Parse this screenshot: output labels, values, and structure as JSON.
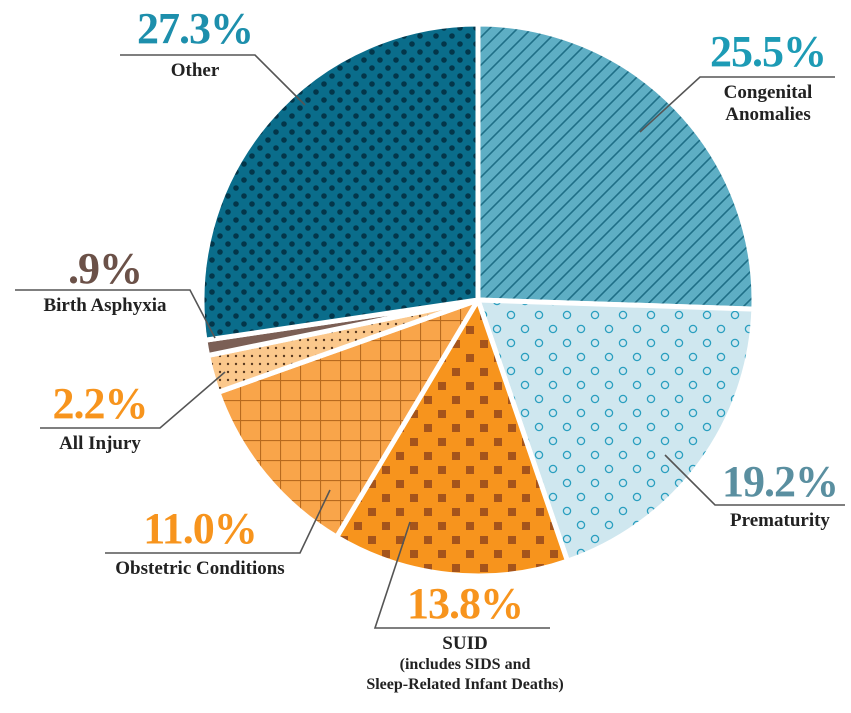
{
  "chart_data": {
    "type": "pie",
    "categories": [
      "Congenital Anomalies",
      "Prematurity",
      "SUID",
      "Obstetric Conditions",
      "All Injury",
      "Birth Asphyxia",
      "Other"
    ],
    "values": [
      25.5,
      19.2,
      13.8,
      11.0,
      2.2,
      0.9,
      27.3
    ],
    "value_labels": [
      "25.5%",
      "19.2%",
      "13.8%",
      "11.0%",
      "2.2%",
      ".9%",
      "27.3%"
    ],
    "colors": [
      "#5eaec4",
      "#cfe7ef",
      "#f7941d",
      "#f9a54a",
      "#fbc88c",
      "#7b5f55",
      "#0a6d8b"
    ],
    "patterns": [
      "hatch",
      "circles",
      "squares",
      "grid",
      "fine-dots",
      "none",
      "dots"
    ],
    "pattern_colors": [
      "#1f6f87",
      "#2a9fbf",
      "#a5541b",
      "#b86a1e",
      "#5a3a20",
      "#7b5f55",
      "#03364a"
    ],
    "label_colors": [
      "#1d9bb5",
      "#5a8fa0",
      "#f7941d",
      "#f7941d",
      "#f7941d",
      "#6b5148",
      "#1d8fac"
    ],
    "annotations": [
      "(includes SIDS and",
      "Sleep-Related Infant Deaths)"
    ]
  }
}
